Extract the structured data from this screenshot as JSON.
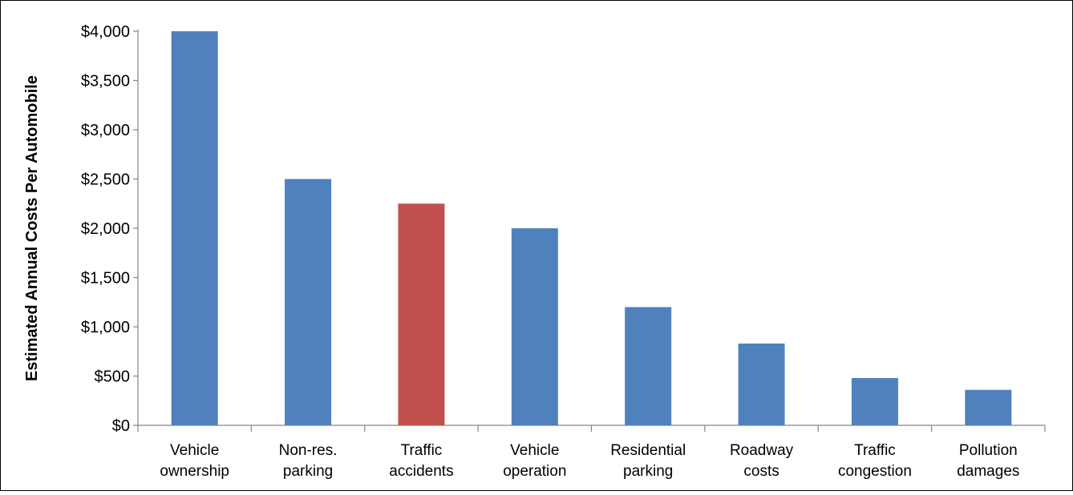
{
  "chart_data": {
    "type": "bar",
    "ylabel": "Estimated Annual Costs Per Automobile",
    "ylim": [
      0,
      4000
    ],
    "ytick_step": 500,
    "ytick_labels": [
      "$0",
      "$500",
      "$1,000",
      "$1,500",
      "$2,000",
      "$2,500",
      "$3,000",
      "$3,500",
      "$4,000"
    ],
    "categories": [
      [
        "Vehicle",
        "ownership"
      ],
      [
        "Non-res.",
        "parking"
      ],
      [
        "Traffic",
        "accidents"
      ],
      [
        "Vehicle",
        "operation"
      ],
      [
        "Residential",
        "parking"
      ],
      [
        "Roadway",
        "costs"
      ],
      [
        "Traffic",
        "congestion"
      ],
      [
        "Pollution",
        "damages"
      ]
    ],
    "values": [
      4000,
      2500,
      2250,
      2000,
      1200,
      830,
      480,
      360
    ],
    "highlight_index": 2,
    "colors": {
      "bar": "#4F81BD",
      "highlight": "#C0504D",
      "axis": "#868686",
      "frame": "#000000"
    },
    "grid": false,
    "legend": "none"
  }
}
